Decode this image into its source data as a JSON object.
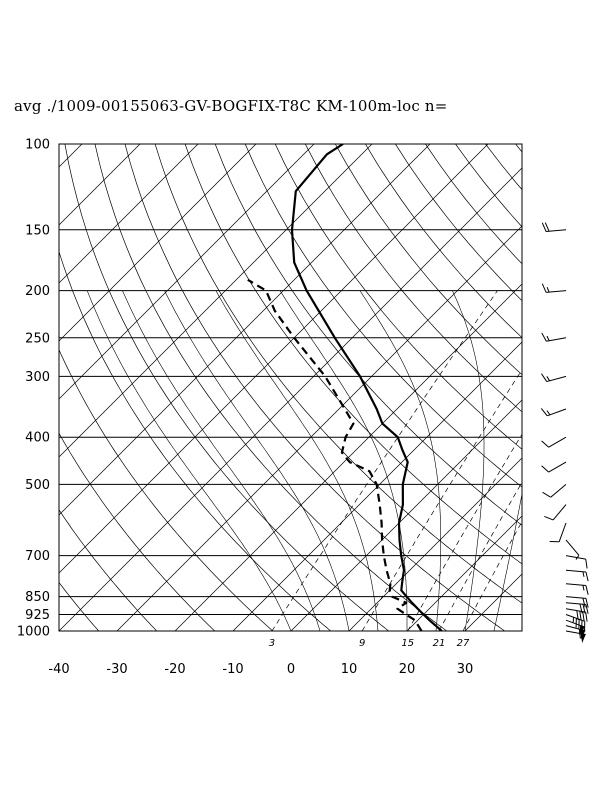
{
  "title": "avg ./1009-00155063-GV-BOGFIX-T8C KM-100m-loc n=",
  "chart_data": {
    "type": "skew-t log-p",
    "title": "avg ./1009-00155063-GV-BOGFIX-T8C KM-100m-loc n=",
    "x_ticks": [
      -40,
      -30,
      -20,
      -10,
      0,
      10,
      20,
      30
    ],
    "x_tick_labels": [
      "-40",
      "-30",
      "-20",
      "-10",
      "0",
      "10",
      "20",
      "30"
    ],
    "p_ticks": [
      100,
      150,
      200,
      250,
      300,
      400,
      500,
      700,
      850,
      925,
      1000
    ],
    "p_tick_labels": [
      "100",
      "150",
      "200",
      "250",
      "300",
      "400",
      "500",
      "700",
      "850",
      "925",
      "1000"
    ],
    "mixing_ratio_labels": [
      "3",
      "9",
      "15",
      "21",
      "27"
    ],
    "mixing_ratio_values": [
      3,
      9,
      15,
      21,
      27
    ],
    "temperature": {
      "p": [
        1000,
        975,
        950,
        925,
        900,
        875,
        850,
        825,
        800,
        775,
        750,
        700,
        650,
        600,
        550,
        500,
        450,
        425,
        400,
        375,
        350,
        300,
        250,
        200,
        175,
        150,
        125,
        105,
        100
      ],
      "t": [
        26,
        24,
        22,
        20,
        18,
        16,
        14,
        12,
        11,
        10,
        9,
        6,
        3,
        0,
        -2.5,
        -6,
        -9,
        -12,
        -15,
        -20,
        -23.5,
        -32,
        -43,
        -56,
        -63,
        -69,
        -75,
        -76,
        -75
      ]
    },
    "dewpoint": {
      "p": [
        1000,
        975,
        950,
        925,
        900,
        875,
        850,
        825,
        800,
        750,
        700,
        650,
        600,
        550,
        500,
        470,
        450,
        430,
        400,
        375,
        350,
        300,
        250,
        220,
        200,
        190
      ],
      "td": [
        22.5,
        21,
        19.5,
        17,
        14.5,
        15,
        11.5,
        10,
        9,
        6,
        3,
        0,
        -3,
        -6.5,
        -10.5,
        -14,
        -19,
        -22,
        -24,
        -25,
        -29,
        -38,
        -50,
        -58,
        -63,
        -68
      ]
    },
    "wind_barbs": {
      "p": [
        1000,
        975,
        950,
        925,
        900,
        875,
        850,
        800,
        750,
        700,
        650,
        600,
        550,
        500,
        450,
        400,
        350,
        300,
        250,
        200,
        150
      ],
      "direction_deg": [
        100,
        105,
        110,
        110,
        100,
        95,
        95,
        95,
        95,
        100,
        140,
        200,
        220,
        230,
        240,
        240,
        250,
        255,
        260,
        265,
        265
      ],
      "speed_kt": [
        55,
        55,
        50,
        45,
        40,
        30,
        20,
        15,
        15,
        10,
        5,
        10,
        10,
        10,
        10,
        10,
        15,
        15,
        15,
        15,
        20
      ]
    }
  }
}
